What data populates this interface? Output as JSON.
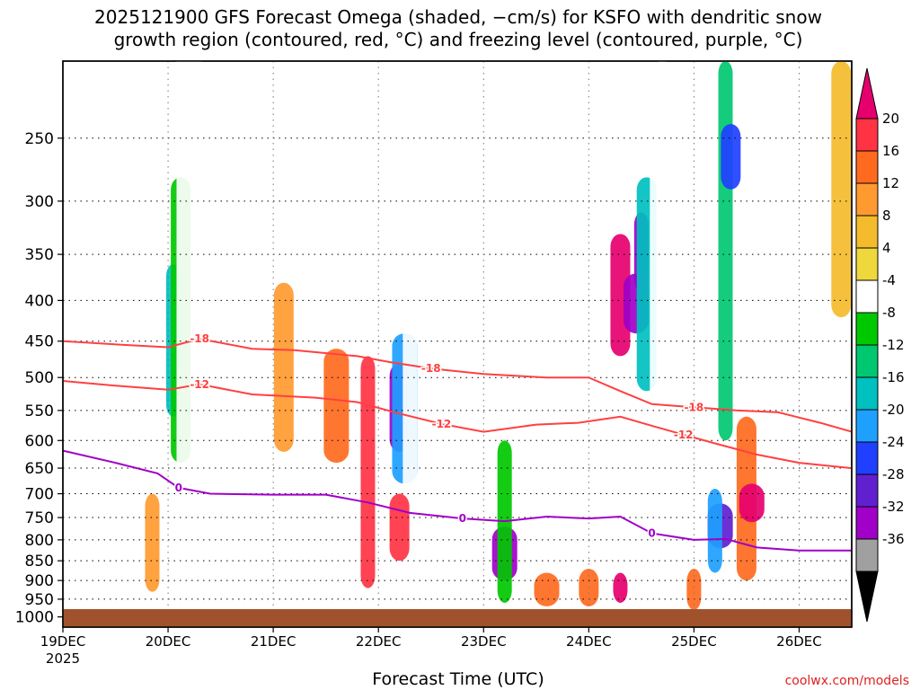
{
  "chart_data": {
    "type": "heatmap",
    "title_line1": "2025121900 GFS Forecast Omega (shaded, −cm/s) for KSFO with dendritic snow",
    "title_line2": "growth region (contoured, red, °C) and freezing level (contoured, purple, °C)",
    "xlabel": "Forecast Time (UTC)",
    "x_ticks": [
      "19DEC",
      "20DEC",
      "21DEC",
      "22DEC",
      "23DEC",
      "24DEC",
      "25DEC",
      "26DEC"
    ],
    "x_year": "2025",
    "xlim": [
      0,
      7.5
    ],
    "y_ticks": [
      "250",
      "300",
      "350",
      "400",
      "450",
      "500",
      "550",
      "600",
      "650",
      "700",
      "750",
      "800",
      "850",
      "900",
      "950",
      "1000"
    ],
    "ylim": [
      200,
      1030
    ],
    "y_scale": "log-pressure",
    "grid": true,
    "colorbar": {
      "labels": [
        "20",
        "16",
        "12",
        "8",
        "4",
        "-4",
        "-8",
        "-12",
        "-16",
        "-20",
        "-24",
        "-28",
        "-32",
        "-36"
      ],
      "colors": [
        "#e6006e",
        "#ff3344",
        "#ff6a1f",
        "#ff9a30",
        "#f4bc2c",
        "#eed83c",
        "#ffffff",
        "#00c800",
        "#00c870",
        "#00c0c0",
        "#1ea0ff",
        "#2040ff",
        "#6020d0",
        "#a000c8",
        "#a0a0a0",
        "#000000"
      ]
    },
    "omega_cells": [
      {
        "t": 1.05,
        "p0": 360,
        "p1": 560,
        "v": -20
      },
      {
        "t": 1.12,
        "p0": 280,
        "p1": 640,
        "v": -12
      },
      {
        "t": 1.2,
        "p0": 180,
        "p1": 900,
        "v": -8
      },
      {
        "t": 2.9,
        "p0": 470,
        "p1": 920,
        "v": 16
      },
      {
        "t": 3.2,
        "p0": 480,
        "p1": 620,
        "v": -36
      },
      {
        "t": 3.25,
        "p0": 440,
        "p1": 680,
        "v": -24
      },
      {
        "t": 3.3,
        "p0": 300,
        "p1": 760,
        "v": -8
      },
      {
        "t": 3.2,
        "p0": 700,
        "p1": 850,
        "v": 16
      },
      {
        "t": 4.2,
        "p0": 770,
        "p1": 900,
        "v": -36
      },
      {
        "t": 4.2,
        "p0": 600,
        "p1": 960,
        "v": -12
      },
      {
        "t": 5.3,
        "p0": 330,
        "p1": 470,
        "v": 20
      },
      {
        "t": 5.45,
        "p0": 370,
        "p1": 440,
        "v": -36
      },
      {
        "t": 5.5,
        "p0": 310,
        "p1": 390,
        "v": -36
      },
      {
        "t": 5.55,
        "p0": 280,
        "p1": 520,
        "v": -20
      },
      {
        "t": 5.7,
        "p0": 200,
        "p1": 700,
        "v": -8
      },
      {
        "t": 6.3,
        "p0": 200,
        "p1": 600,
        "v": -16
      },
      {
        "t": 6.35,
        "p0": 240,
        "p1": 290,
        "v": -28
      },
      {
        "t": 6.25,
        "p0": 720,
        "p1": 820,
        "v": -32
      },
      {
        "t": 6.2,
        "p0": 690,
        "p1": 880,
        "v": -24
      },
      {
        "t": 6.5,
        "p0": 560,
        "p1": 900,
        "v": 12
      },
      {
        "t": 6.55,
        "p0": 680,
        "p1": 760,
        "v": 20
      },
      {
        "t": 5.3,
        "p0": 880,
        "p1": 960,
        "v": 20
      },
      {
        "t": 5.0,
        "p0": 870,
        "p1": 970,
        "v": 12
      },
      {
        "t": 4.6,
        "p0": 880,
        "p1": 970,
        "v": 12
      },
      {
        "t": 6.0,
        "p0": 870,
        "p1": 980,
        "v": 12
      },
      {
        "t": 7.4,
        "p0": 200,
        "p1": 420,
        "v": 4
      },
      {
        "t": 7.3,
        "p0": 440,
        "p1": 940,
        "v": -8
      },
      {
        "t": 0.85,
        "p0": 700,
        "p1": 930,
        "v": 8
      },
      {
        "t": 2.1,
        "p0": 380,
        "p1": 620,
        "v": 8
      },
      {
        "t": 2.6,
        "p0": 460,
        "p1": 640,
        "v": 12
      }
    ],
    "contours": [
      {
        "kind": "dendritic",
        "label": "-18",
        "color": "#ff4040",
        "points": [
          [
            0,
            450
          ],
          [
            0.6,
            455
          ],
          [
            1.0,
            458
          ],
          [
            1.3,
            447
          ],
          [
            1.8,
            460
          ],
          [
            2.2,
            462
          ],
          [
            2.8,
            470
          ],
          [
            3.1,
            478
          ],
          [
            3.5,
            487
          ],
          [
            4.0,
            495
          ],
          [
            4.6,
            500
          ],
          [
            5.0,
            500
          ],
          [
            5.3,
            520
          ],
          [
            5.6,
            540
          ],
          [
            6.0,
            545
          ],
          [
            6.4,
            550
          ],
          [
            6.8,
            553
          ],
          [
            7.2,
            570
          ],
          [
            7.5,
            585
          ]
        ]
      },
      {
        "kind": "dendritic",
        "label": "-12",
        "color": "#ff4040",
        "points": [
          [
            0,
            505
          ],
          [
            0.5,
            512
          ],
          [
            1.0,
            518
          ],
          [
            1.3,
            510
          ],
          [
            1.8,
            525
          ],
          [
            2.4,
            530
          ],
          [
            2.8,
            537
          ],
          [
            3.2,
            555
          ],
          [
            3.6,
            572
          ],
          [
            4.0,
            585
          ],
          [
            4.5,
            573
          ],
          [
            4.9,
            570
          ],
          [
            5.3,
            560
          ],
          [
            5.6,
            575
          ],
          [
            5.9,
            590
          ],
          [
            6.2,
            605
          ],
          [
            6.6,
            625
          ],
          [
            7.0,
            640
          ],
          [
            7.5,
            650
          ]
        ]
      },
      {
        "kind": "freezing",
        "label": "0",
        "color": "#a000c8",
        "points": [
          [
            0,
            618
          ],
          [
            0.5,
            640
          ],
          [
            0.9,
            660
          ],
          [
            1.1,
            688
          ],
          [
            1.4,
            700
          ],
          [
            2.0,
            702
          ],
          [
            2.5,
            702
          ],
          [
            2.9,
            718
          ],
          [
            3.3,
            740
          ],
          [
            3.8,
            752
          ],
          [
            4.2,
            758
          ],
          [
            4.6,
            748
          ],
          [
            5.0,
            752
          ],
          [
            5.3,
            748
          ],
          [
            5.6,
            785
          ],
          [
            6.0,
            800
          ],
          [
            6.3,
            798
          ],
          [
            6.6,
            818
          ],
          [
            7.0,
            825
          ],
          [
            7.5,
            825
          ]
        ]
      }
    ]
  },
  "credit": "coolwx.com/models"
}
